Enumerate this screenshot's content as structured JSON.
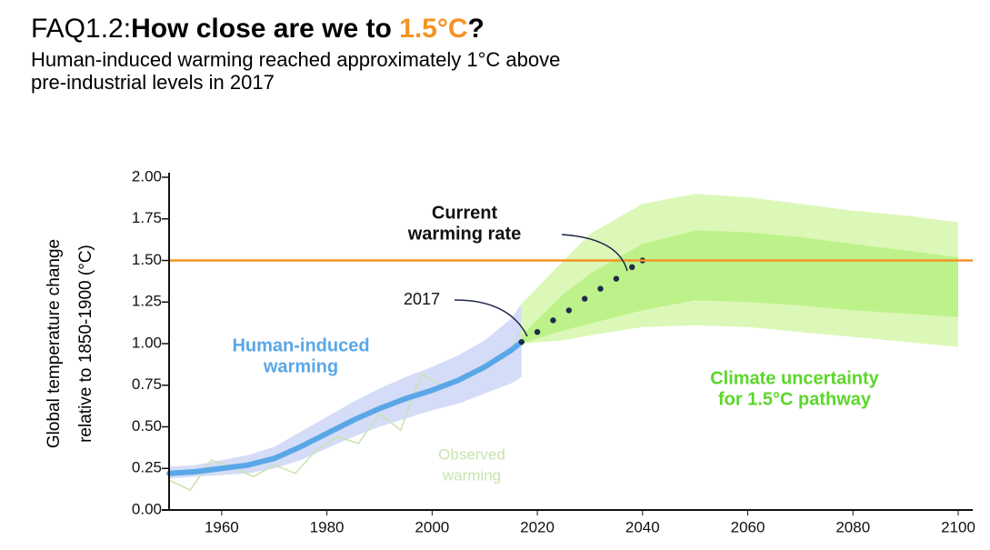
{
  "chart_data": {
    "type": "line",
    "title_prefix": "FAQ1.2:",
    "title_main": "How close are we to ",
    "title_highlight": "1.5°C",
    "title_suffix": "?",
    "subtitle": [
      "Human-induced warming reached approximately 1°C above",
      "pre-industrial levels in 2017"
    ],
    "y_label": [
      "Global temperature change",
      "relative to 1850-1900 (°C)"
    ],
    "xlim": [
      1950,
      2100
    ],
    "xticks": [
      1960,
      1980,
      2000,
      2020,
      2040,
      2060,
      2080,
      2100
    ],
    "ylim": [
      0,
      2
    ],
    "yticks": [
      {
        "value": 0,
        "label": "0.00"
      },
      {
        "value": 0.25,
        "label": "0.25"
      },
      {
        "value": 0.5,
        "label": "0.50"
      },
      {
        "value": 0.75,
        "label": "0.75"
      },
      {
        "value": 1,
        "label": "1.00"
      },
      {
        "value": 1.25,
        "label": "1.25"
      },
      {
        "value": 1.5,
        "label": "1.50"
      },
      {
        "value": 1.75,
        "label": "1.75"
      },
      {
        "value": 2,
        "label": "2.00"
      }
    ],
    "highlight_color": "#f39325",
    "reference_value": 1.5,
    "observed": {
      "color": "#c9e3b0",
      "x": [
        1950,
        1954,
        1958,
        1962,
        1966,
        1970,
        1974,
        1978,
        1982,
        1986,
        1990,
        1994,
        1998,
        2002,
        2006,
        2010,
        2014,
        2017
      ],
      "values": [
        0.18,
        0.12,
        0.3,
        0.26,
        0.2,
        0.27,
        0.22,
        0.36,
        0.44,
        0.4,
        0.58,
        0.48,
        0.82,
        0.74,
        0.8,
        0.86,
        0.92,
        1.08
      ]
    },
    "human_induced": {
      "color": "#5aa7e8",
      "band_color": "#d5dcf7",
      "x": [
        1950,
        1955,
        1960,
        1965,
        1970,
        1975,
        1980,
        1985,
        1990,
        1995,
        2000,
        2005,
        2010,
        2015,
        2017
      ],
      "values": [
        0.22,
        0.23,
        0.25,
        0.27,
        0.31,
        0.38,
        0.46,
        0.54,
        0.61,
        0.67,
        0.72,
        0.78,
        0.86,
        0.96,
        1.01
      ],
      "lower": [
        0.19,
        0.2,
        0.21,
        0.22,
        0.25,
        0.3,
        0.37,
        0.44,
        0.5,
        0.55,
        0.6,
        0.64,
        0.7,
        0.76,
        0.8
      ],
      "upper": [
        0.26,
        0.27,
        0.3,
        0.33,
        0.38,
        0.47,
        0.56,
        0.65,
        0.73,
        0.8,
        0.86,
        0.93,
        1.02,
        1.15,
        1.24
      ]
    },
    "current_rate": {
      "color": "#1f2a4a",
      "x": [
        2017,
        2020,
        2023,
        2026,
        2029,
        2032,
        2035,
        2038,
        2040
      ],
      "values": [
        1.01,
        1.07,
        1.14,
        1.2,
        1.27,
        1.33,
        1.39,
        1.46,
        1.5
      ]
    },
    "uncertainty": {
      "x": [
        2017,
        2025,
        2030,
        2040,
        2050,
        2060,
        2070,
        2080,
        2090,
        2100
      ],
      "outer_color": "#dcf8b8",
      "outer_lower": [
        1.0,
        1.02,
        1.05,
        1.1,
        1.11,
        1.1,
        1.07,
        1.04,
        1.01,
        0.98
      ],
      "outer_upper": [
        1.24,
        1.5,
        1.66,
        1.84,
        1.9,
        1.88,
        1.84,
        1.8,
        1.77,
        1.73
      ],
      "inner_color": "#bdf28a",
      "inner_lower": [
        1.0,
        1.08,
        1.12,
        1.2,
        1.26,
        1.25,
        1.23,
        1.2,
        1.18,
        1.16
      ],
      "inner_upper": [
        1.05,
        1.3,
        1.42,
        1.6,
        1.68,
        1.67,
        1.64,
        1.6,
        1.56,
        1.52
      ]
    },
    "annotations": {
      "human": {
        "lines": [
          "Human-induced",
          "warming"
        ],
        "color": "#5aa7e8"
      },
      "observed": {
        "lines": [
          "Observed",
          "warming"
        ],
        "color": "#c9e3b0"
      },
      "uncertainty": {
        "lines": [
          "Climate uncertainty",
          "for 1.5°C pathway"
        ],
        "color": "#5cd62a"
      },
      "current": {
        "lines": [
          "Current",
          "warming rate"
        ]
      },
      "year": {
        "text": "2017"
      }
    }
  }
}
